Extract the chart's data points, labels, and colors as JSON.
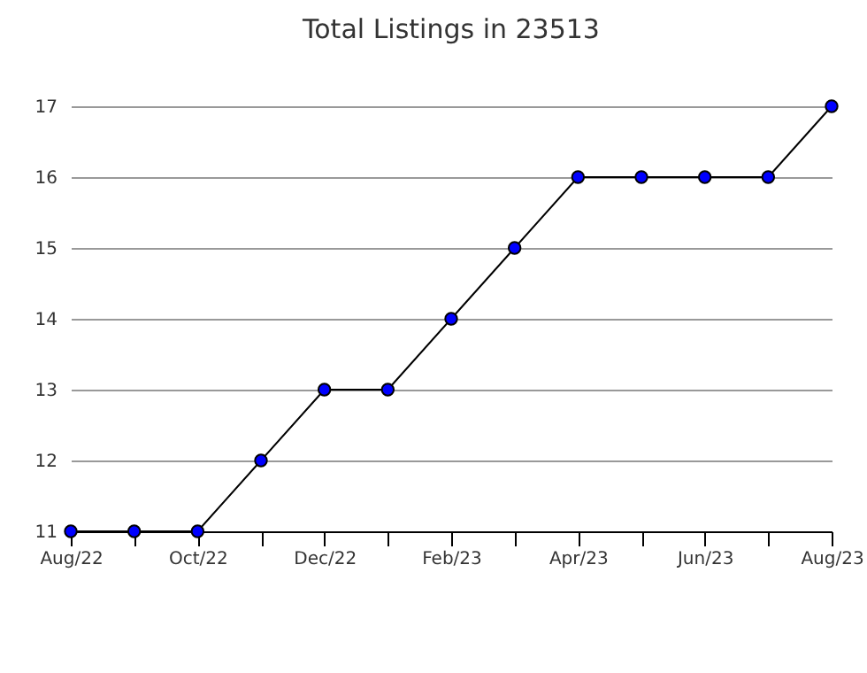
{
  "chart_data": {
    "type": "line",
    "title": "Total Listings in 23513",
    "categories": [
      "Aug/22",
      null,
      "Oct/22",
      null,
      "Dec/22",
      null,
      "Feb/23",
      null,
      "Apr/23",
      null,
      "Jun/23",
      null,
      "Aug/23"
    ],
    "series": [
      {
        "color": "#0000ff",
        "values": [
          11,
          11,
          11,
          12,
          13,
          13,
          14,
          15,
          16,
          16,
          16,
          16,
          17
        ]
      }
    ],
    "ylim": [
      11,
      17
    ],
    "yticks": [
      11,
      12,
      13,
      14,
      15,
      16,
      17
    ],
    "grid": "y",
    "marker": "circle",
    "line_style": "solid"
  }
}
